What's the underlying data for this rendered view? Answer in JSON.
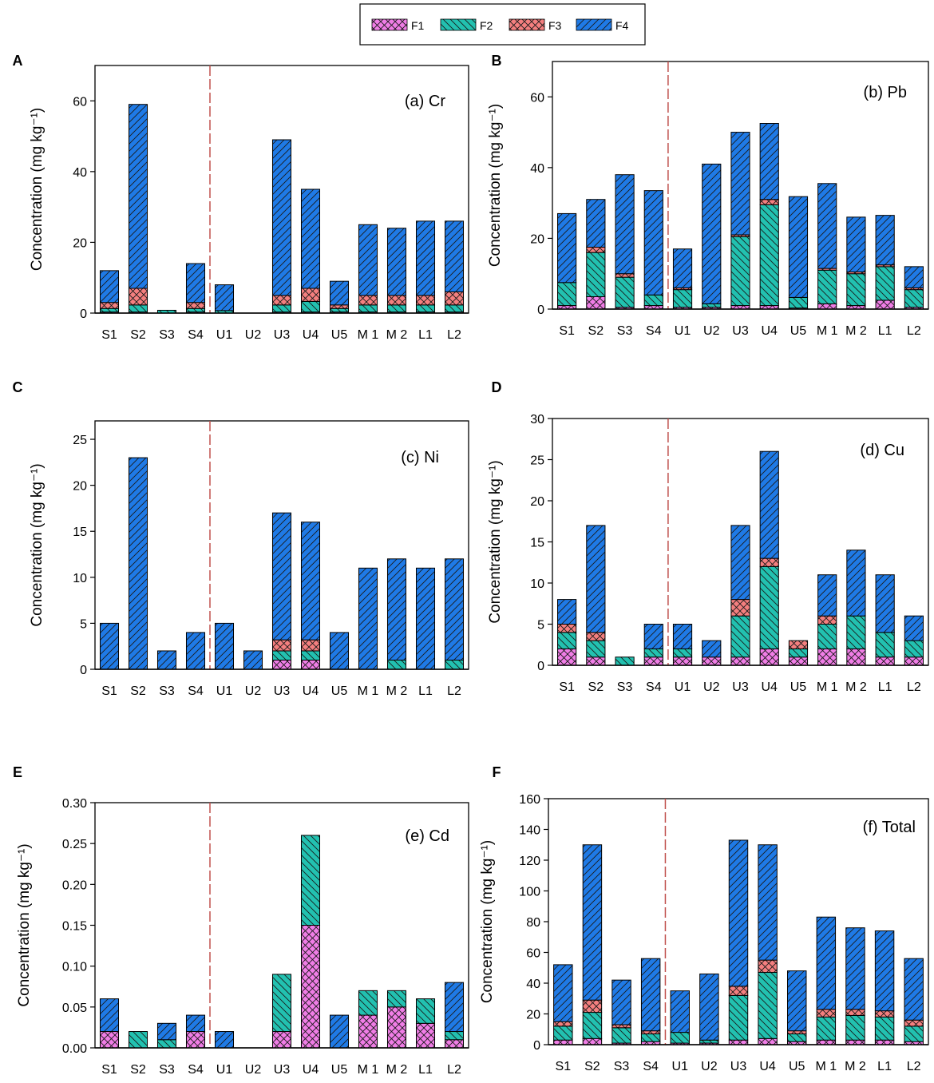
{
  "legend": {
    "items": [
      {
        "key": "F1",
        "label": "F1",
        "color": "#f07de6",
        "pattern": "crosshatch"
      },
      {
        "key": "F2",
        "label": "F2",
        "color": "#22c1b0",
        "pattern": "backslash"
      },
      {
        "key": "F3",
        "label": "F3",
        "color": "#f47f7f",
        "pattern": "crosshatch"
      },
      {
        "key": "F4",
        "label": "F4",
        "color": "#1f7ae6",
        "pattern": "slash"
      }
    ]
  },
  "colors": {
    "divider": "#c0504d",
    "axis": "#000000"
  },
  "chart_data": [
    {
      "panel_label": "A",
      "title": "(a)  Cr",
      "type": "bar",
      "stacked": true,
      "ylabel": "Concentration (mg kg⁻¹)",
      "ylim": [
        0,
        70
      ],
      "yticks": [
        0,
        20,
        40,
        60
      ],
      "tick_format": "int",
      "categories": [
        "S1",
        "S2",
        "S3",
        "S4",
        "U1",
        "U2",
        "U3",
        "U4",
        "U5",
        "M 1",
        "M 2",
        "L1",
        "L2"
      ],
      "divider_after_index": 3,
      "series": [
        {
          "name": "F1",
          "values": [
            0.3,
            0.3,
            0,
            0.3,
            0,
            0,
            0.3,
            0.3,
            0.3,
            0.3,
            0.3,
            0.3,
            0.3
          ]
        },
        {
          "name": "F2",
          "values": [
            1,
            2,
            0.8,
            1,
            0.7,
            0,
            2,
            3,
            1,
            2,
            2,
            2,
            2
          ]
        },
        {
          "name": "F3",
          "values": [
            1.7,
            4.7,
            0,
            1.7,
            0,
            0,
            2.7,
            3.7,
            1,
            2.7,
            2.7,
            2.7,
            3.7
          ]
        },
        {
          "name": "F4",
          "values": [
            9,
            52,
            0,
            11,
            7.3,
            0,
            44,
            28,
            6.7,
            20,
            19,
            21,
            20
          ]
        }
      ]
    },
    {
      "panel_label": "B",
      "title": "(b)  Pb",
      "type": "bar",
      "stacked": true,
      "ylabel": "Concentration (mg kg⁻¹)",
      "ylim": [
        0,
        70
      ],
      "yticks": [
        0,
        20,
        40,
        60
      ],
      "tick_format": "int",
      "categories": [
        "S1",
        "S2",
        "S3",
        "S4",
        "U1",
        "U2",
        "U3",
        "U4",
        "U5",
        "M 1",
        "M 2",
        "L1",
        "L2"
      ],
      "divider_after_index": 3,
      "series": [
        {
          "name": "F1",
          "values": [
            1,
            3.5,
            0.5,
            1,
            0.5,
            0.5,
            1,
            1,
            0.3,
            1.5,
            1,
            2.5,
            0.5
          ]
        },
        {
          "name": "F2",
          "values": [
            6.5,
            12.5,
            8.5,
            3,
            5,
            1,
            19.5,
            28.5,
            3,
            9.5,
            9,
            9.5,
            5
          ]
        },
        {
          "name": "F3",
          "values": [
            0,
            1.5,
            1,
            0,
            0.5,
            0,
            0.5,
            1.5,
            0,
            0.5,
            0.5,
            0.5,
            0.5
          ]
        },
        {
          "name": "F4",
          "values": [
            19.5,
            13.5,
            28,
            29.5,
            11,
            39.5,
            29,
            21.5,
            28.5,
            24,
            15.5,
            14,
            6
          ]
        }
      ]
    },
    {
      "panel_label": "C",
      "title": "(c)  Ni",
      "type": "bar",
      "stacked": true,
      "ylabel": "Concentration (mg kg⁻¹)",
      "ylim": [
        0,
        27
      ],
      "yticks": [
        0,
        5,
        10,
        15,
        20,
        25
      ],
      "tick_format": "int",
      "categories": [
        "S1",
        "S2",
        "S3",
        "S4",
        "U1",
        "U2",
        "U3",
        "U4",
        "U5",
        "M 1",
        "M 2",
        "L1",
        "L2"
      ],
      "divider_after_index": 3,
      "series": [
        {
          "name": "F1",
          "values": [
            0,
            0,
            0,
            0,
            0,
            0,
            1,
            1,
            0,
            0,
            0,
            0,
            0
          ]
        },
        {
          "name": "F2",
          "values": [
            0,
            0,
            0,
            0,
            0,
            0,
            1,
            1,
            0,
            0,
            1,
            0,
            1
          ]
        },
        {
          "name": "F3",
          "values": [
            0,
            0,
            0,
            0,
            0,
            0,
            1.2,
            1.2,
            0,
            0,
            0,
            0,
            0
          ]
        },
        {
          "name": "F4",
          "values": [
            5,
            23,
            2,
            4,
            5,
            2,
            13.8,
            12.8,
            4,
            11,
            11,
            11,
            11
          ]
        }
      ]
    },
    {
      "panel_label": "D",
      "title": "(d)  Cu",
      "type": "bar",
      "stacked": true,
      "ylabel": "Concentration (mg kg⁻¹)",
      "ylim": [
        0,
        30
      ],
      "yticks": [
        0,
        5,
        10,
        15,
        20,
        25,
        30
      ],
      "tick_format": "int",
      "categories": [
        "S1",
        "S2",
        "S3",
        "S4",
        "U1",
        "U2",
        "U3",
        "U4",
        "U5",
        "M 1",
        "M 2",
        "L1",
        "L2"
      ],
      "divider_after_index": 3,
      "series": [
        {
          "name": "F1",
          "values": [
            2,
            1,
            0,
            1,
            1,
            1,
            1,
            2,
            1,
            2,
            2,
            1,
            1
          ]
        },
        {
          "name": "F2",
          "values": [
            2,
            2,
            1,
            1,
            1,
            0,
            5,
            10,
            1,
            3,
            4,
            3,
            2
          ]
        },
        {
          "name": "F3",
          "values": [
            1,
            1,
            0,
            0,
            0,
            0,
            2,
            1,
            1,
            1,
            0,
            0,
            0
          ]
        },
        {
          "name": "F4",
          "values": [
            3,
            13,
            0,
            3,
            3,
            2,
            9,
            13,
            0,
            5,
            8,
            7,
            3
          ]
        }
      ]
    },
    {
      "panel_label": "E",
      "title": "(e)  Cd",
      "type": "bar",
      "stacked": true,
      "ylabel": "Concentration (mg kg⁻¹)",
      "ylim": [
        0,
        0.3
      ],
      "yticks": [
        0,
        0.05,
        0.1,
        0.15,
        0.2,
        0.25,
        0.3
      ],
      "tick_format": "2dp",
      "categories": [
        "S1",
        "S2",
        "S3",
        "S4",
        "U1",
        "U2",
        "U3",
        "U4",
        "U5",
        "M 1",
        "M 2",
        "L1",
        "L2"
      ],
      "divider_after_index": 3,
      "series": [
        {
          "name": "F1",
          "values": [
            0.02,
            0,
            0,
            0.02,
            0,
            0,
            0.02,
            0.15,
            0,
            0.04,
            0.05,
            0.03,
            0.01
          ]
        },
        {
          "name": "F2",
          "values": [
            0,
            0.02,
            0.01,
            0,
            0,
            0,
            0.07,
            0.11,
            0,
            0.03,
            0.02,
            0.03,
            0.01
          ]
        },
        {
          "name": "F3",
          "values": [
            0,
            0,
            0,
            0,
            0,
            0,
            0,
            0,
            0,
            0,
            0,
            0,
            0
          ]
        },
        {
          "name": "F4",
          "values": [
            0.04,
            0,
            0.02,
            0.02,
            0.02,
            0,
            0,
            0,
            0.04,
            0,
            0,
            0,
            0.06
          ]
        }
      ]
    },
    {
      "panel_label": "F",
      "title": "(f)  Total",
      "type": "bar",
      "stacked": true,
      "ylabel": "Concentration (mg kg⁻¹)",
      "ylim": [
        0,
        160
      ],
      "yticks": [
        0,
        20,
        40,
        60,
        80,
        100,
        120,
        140,
        160
      ],
      "tick_format": "int",
      "categories": [
        "S1",
        "S2",
        "S3",
        "S4",
        "U1",
        "U2",
        "U3",
        "U4",
        "U5",
        "M 1",
        "M 2",
        "L1",
        "L2"
      ],
      "divider_after_index": 3,
      "series": [
        {
          "name": "F1",
          "values": [
            3,
            4,
            1,
            2,
            1,
            1,
            3,
            4,
            2,
            3,
            3,
            3,
            2
          ]
        },
        {
          "name": "F2",
          "values": [
            9,
            17,
            10,
            5,
            7,
            2,
            29,
            43,
            5,
            15,
            16,
            15,
            10
          ]
        },
        {
          "name": "F3",
          "values": [
            3,
            8,
            2,
            2,
            0,
            0,
            6,
            8,
            2,
            5,
            4,
            4,
            4
          ]
        },
        {
          "name": "F4",
          "values": [
            37,
            101,
            29,
            47,
            27,
            43,
            95,
            75,
            39,
            60,
            53,
            52,
            40
          ]
        }
      ]
    }
  ]
}
